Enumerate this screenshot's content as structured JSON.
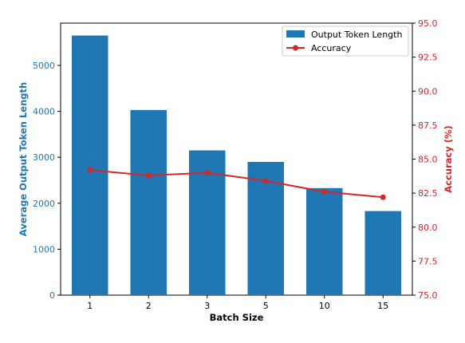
{
  "chart_data": {
    "type": "bar",
    "categories": [
      "1",
      "2",
      "3",
      "5",
      "10",
      "15"
    ],
    "series": [
      {
        "name": "Output Token Length",
        "type": "bar",
        "axis": "left",
        "color": "#1f77b4",
        "values": [
          5650,
          4030,
          3150,
          2900,
          2330,
          1830
        ]
      },
      {
        "name": "Accuracy",
        "type": "line",
        "axis": "right",
        "color": "#d62728",
        "values": [
          84.2,
          83.8,
          84.0,
          83.4,
          82.6,
          82.2
        ]
      }
    ],
    "xlabel": "Batch Size",
    "ylabel": "Average Output Token Length",
    "y2label": "Accuracy (%)",
    "ylim": [
      0,
      5920
    ],
    "y2lim": [
      75.0,
      95.0
    ],
    "yticks": [
      "0",
      "1000",
      "2000",
      "3000",
      "4000",
      "5000"
    ],
    "y2ticks": [
      "75.0",
      "77.5",
      "80.0",
      "82.5",
      "85.0",
      "87.5",
      "90.0",
      "92.5",
      "95.0"
    ],
    "legend": "top-right",
    "grid": false
  }
}
